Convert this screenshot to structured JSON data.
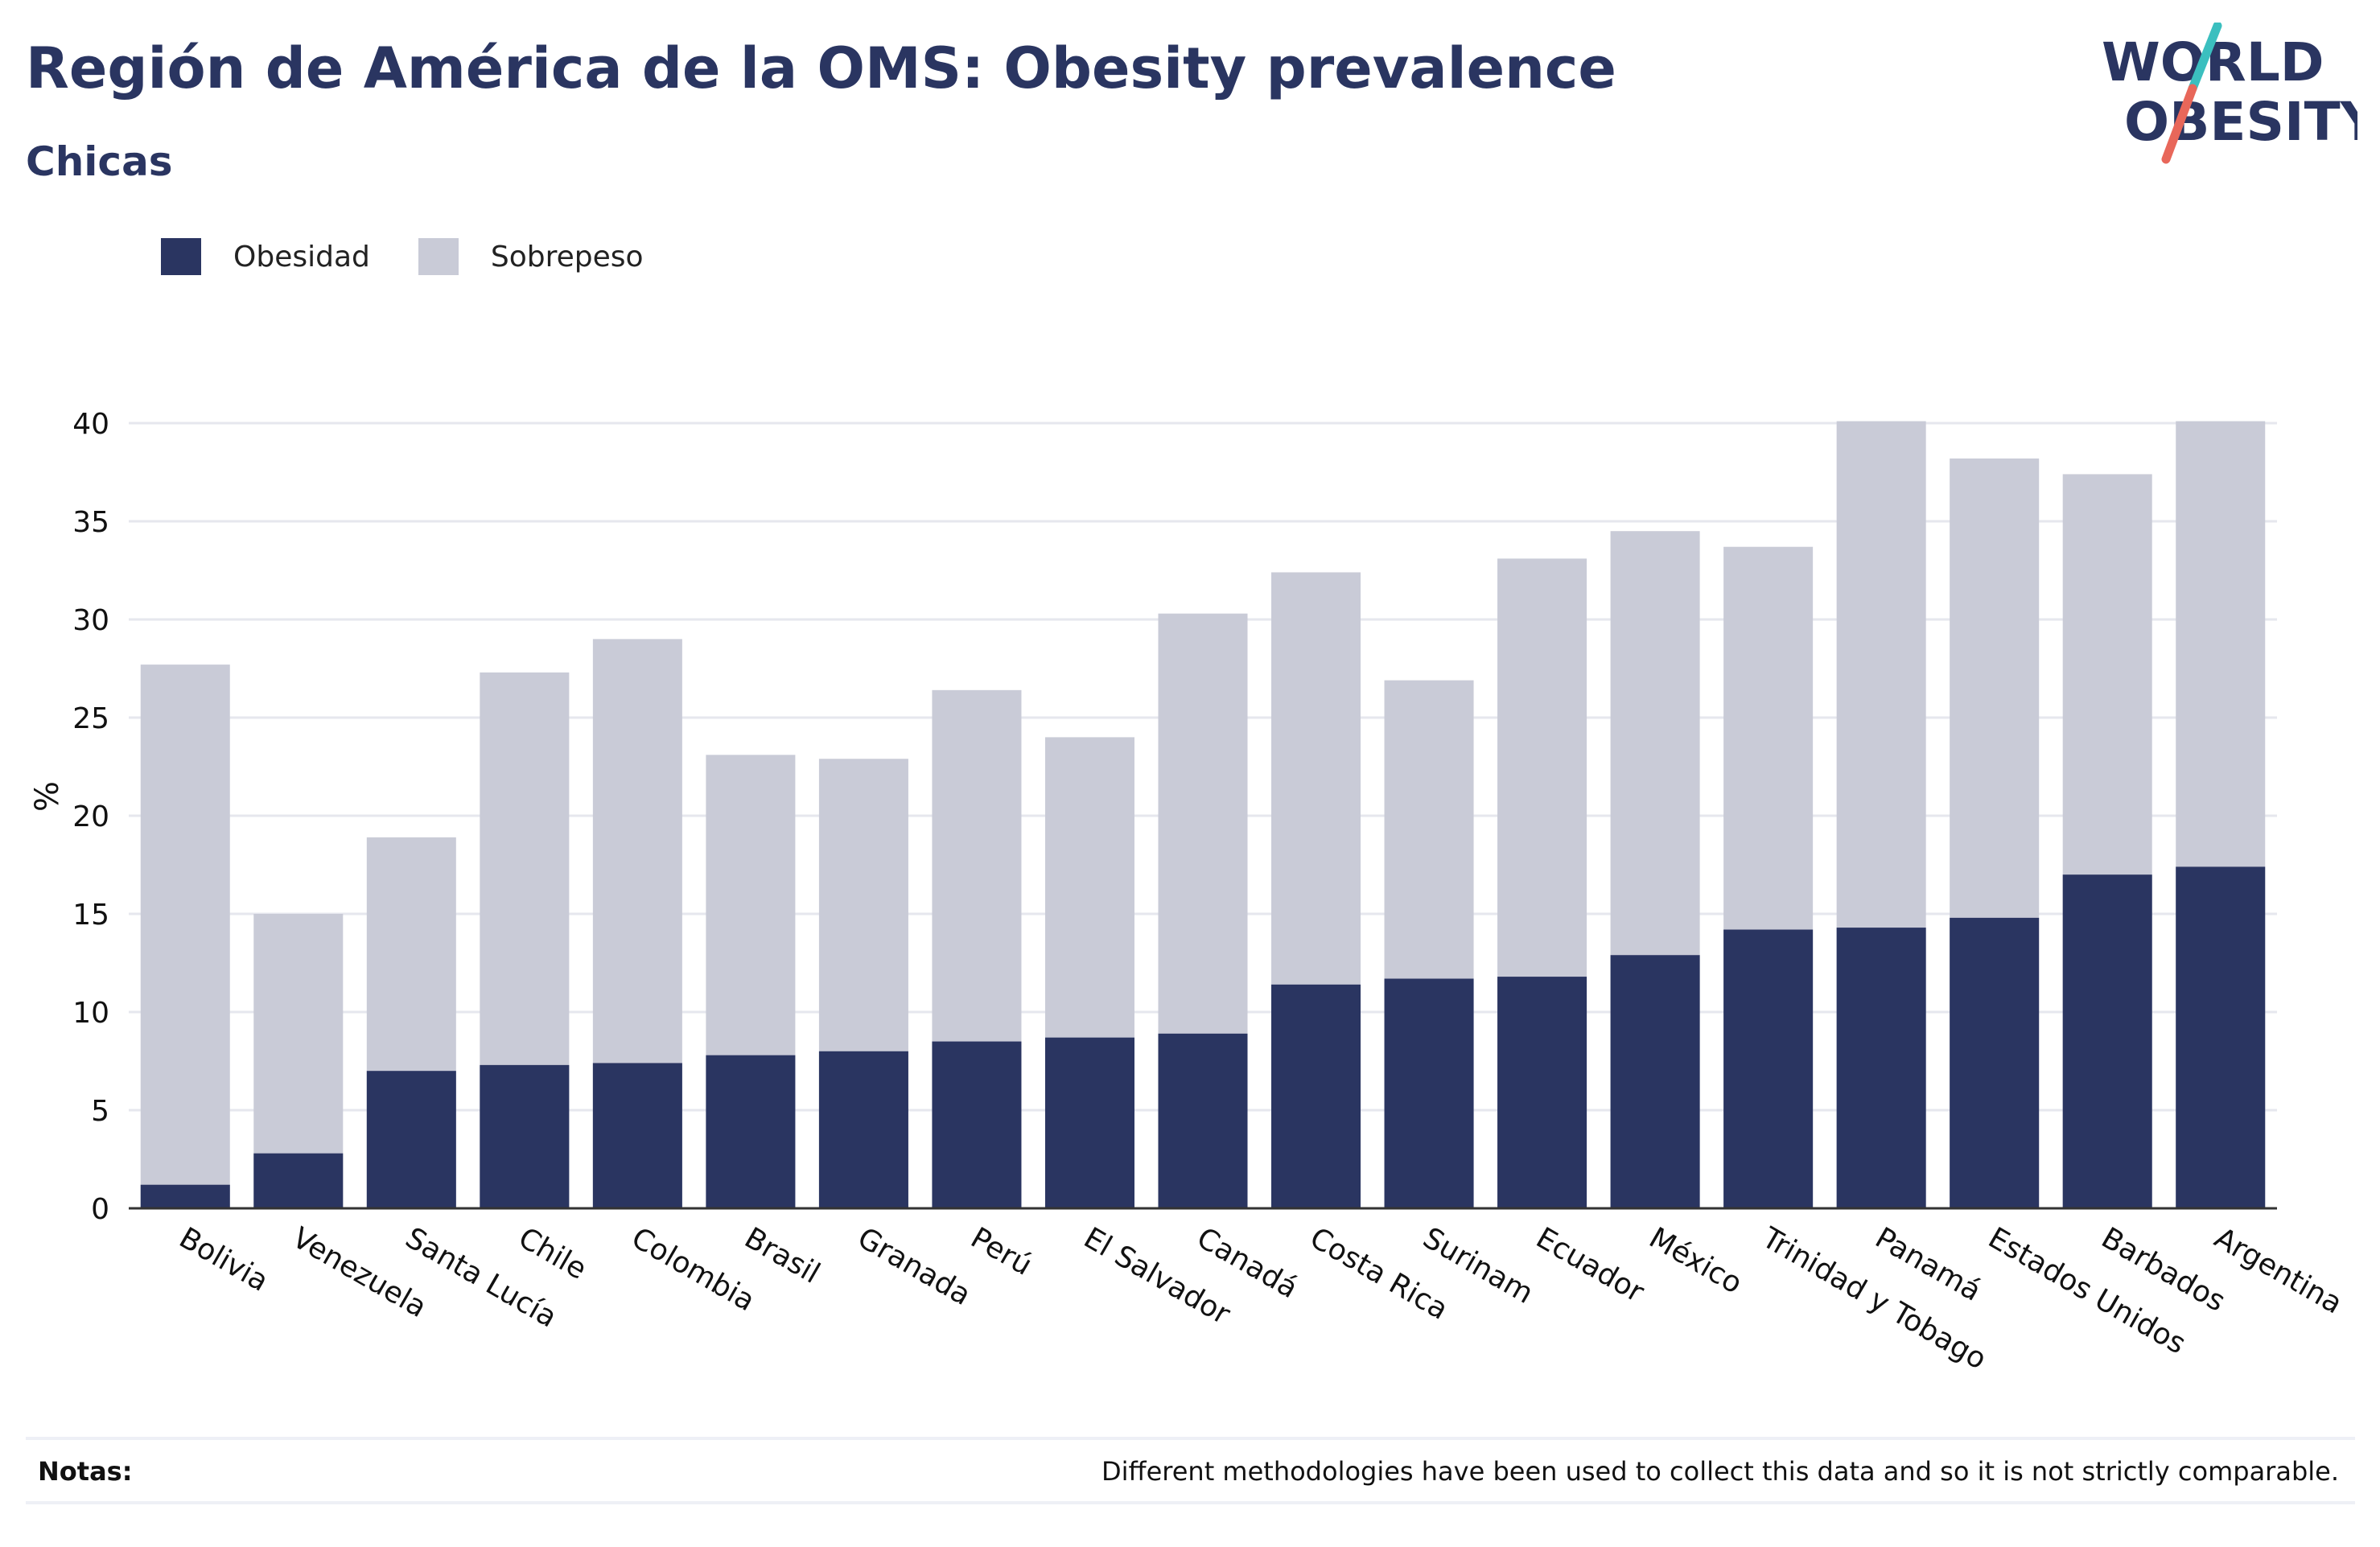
{
  "header": {
    "title": "Región de América de la OMS: Obesity prevalence",
    "subtitle": "Chicas"
  },
  "logo": {
    "line1": "WORLD",
    "line2": "OBESITY",
    "colors": {
      "text": "#2a3561",
      "slash_top": "#3bbfbf",
      "slash_bottom": "#e8675a"
    }
  },
  "legend": [
    {
      "label": "Obesidad",
      "color": "#2a3561"
    },
    {
      "label": "Sobrepeso",
      "color": "#c9cbd7"
    }
  ],
  "notes": {
    "label": "Notas:",
    "text": "Different methodologies have been used to collect this data and so it is not strictly comparable."
  },
  "chart_data": {
    "type": "bar",
    "stacked": false,
    "title": "Región de América de la OMS: Obesity prevalence",
    "subtitle": "Chicas",
    "ylabel": "%",
    "xlabel": "",
    "ylim": [
      0,
      40
    ],
    "yticks": [
      0,
      5,
      10,
      15,
      20,
      25,
      30,
      35,
      40
    ],
    "grid": true,
    "legend_position": "top-left",
    "categories": [
      "Bolivia",
      "Venezuela",
      "Santa Lucía",
      "Chile",
      "Colombia",
      "Brasil",
      "Granada",
      "Perú",
      "El Salvador",
      "Canadá",
      "Costa Rica",
      "Surinam",
      "Ecuador",
      "México",
      "Trinidad y Tobago",
      "Panamá",
      "Estados Unidos",
      "Barbados",
      "Argentina"
    ],
    "series": [
      {
        "name": "Sobrepeso",
        "color": "#c9cbd7",
        "values": [
          27.7,
          15.0,
          18.9,
          27.3,
          29.0,
          23.1,
          22.9,
          26.4,
          24.0,
          30.3,
          32.4,
          26.9,
          33.1,
          34.5,
          33.7,
          40.1,
          38.2,
          37.4,
          40.1
        ]
      },
      {
        "name": "Obesidad",
        "color": "#2a3561",
        "values": [
          1.2,
          2.8,
          7.0,
          7.3,
          7.4,
          7.8,
          8.0,
          8.5,
          8.7,
          8.9,
          11.4,
          11.7,
          11.8,
          12.9,
          14.2,
          14.3,
          14.8,
          17.0,
          17.4
        ]
      }
    ]
  }
}
